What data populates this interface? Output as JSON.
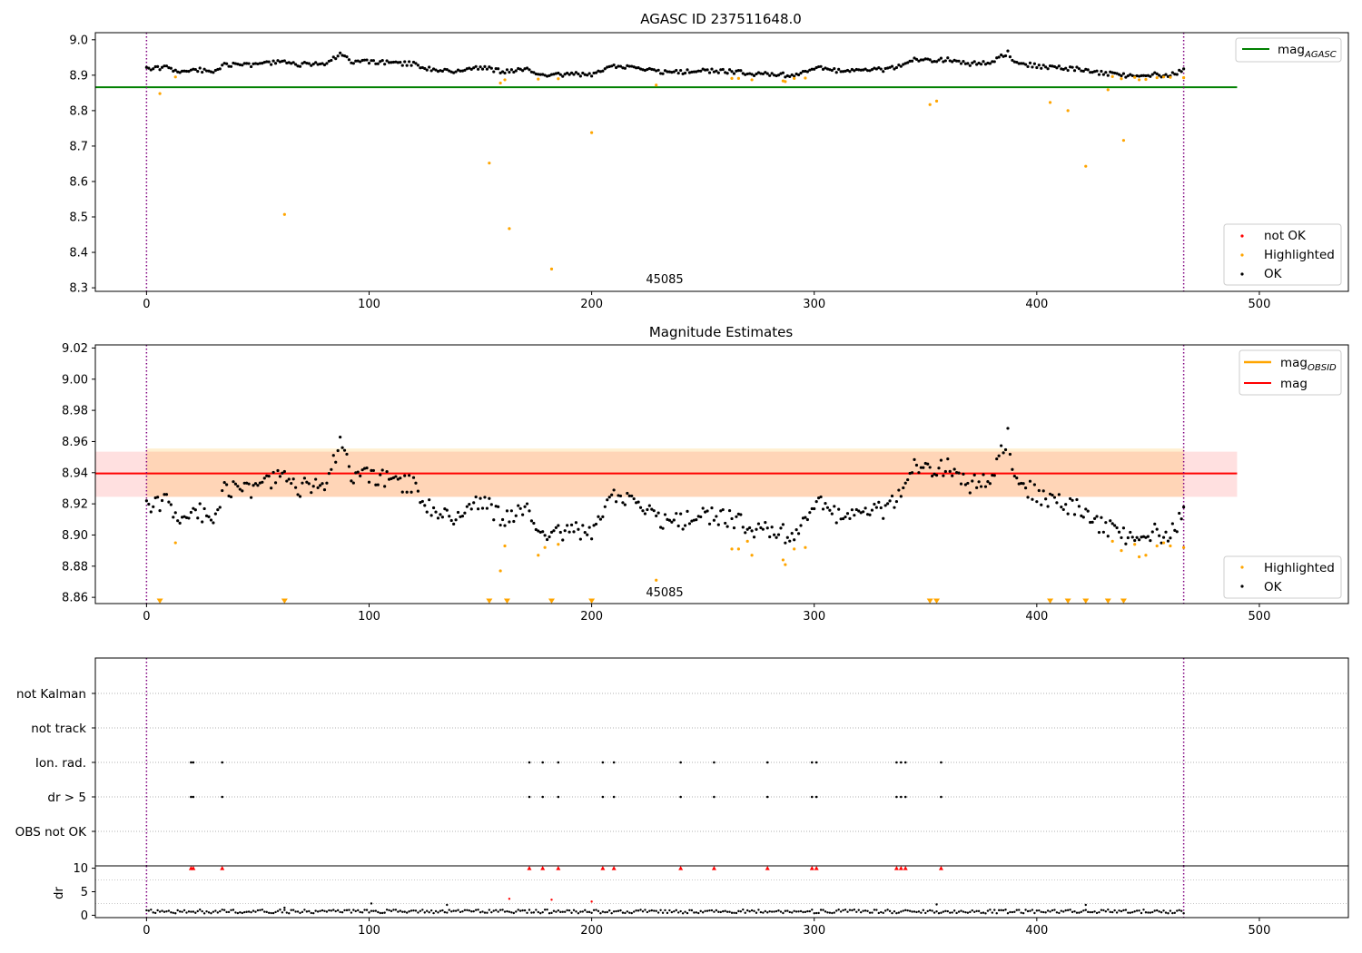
{
  "chart_data": [
    {
      "type": "scatter",
      "title": "AGASC ID 237511648.0",
      "xlim": [
        -23,
        540
      ],
      "ylim": [
        8.29,
        9.02
      ],
      "xticks": [
        0,
        100,
        200,
        300,
        400,
        500
      ],
      "yticks": [
        8.3,
        8.4,
        8.5,
        8.6,
        8.7,
        8.8,
        8.9,
        9.0
      ],
      "ytick_labels": [
        "8.3",
        "8.4",
        "8.5",
        "8.6",
        "8.7",
        "8.8",
        "8.9",
        "9.0"
      ],
      "hline": {
        "label": "mag",
        "label_sub": "AGASC",
        "value": 8.866,
        "x_range": [
          -23,
          490
        ],
        "color": "#008000"
      },
      "vlines": [
        0,
        466
      ],
      "obsid_annotation": {
        "text": "45085",
        "x": 233,
        "y": 8.3
      },
      "legend_top": [
        {
          "label": "mag",
          "sub": "AGASC",
          "kind": "line",
          "color": "#008000"
        }
      ],
      "legend_bottom": [
        {
          "label": "not OK",
          "kind": "dot",
          "color": "#ff0000"
        },
        {
          "label": "Highlighted",
          "kind": "dot",
          "color": "#ffa500"
        },
        {
          "label": "OK",
          "kind": "dot",
          "color": "#000000"
        }
      ],
      "highlighted": [
        [
          6,
          8.848
        ],
        [
          13,
          8.895
        ],
        [
          62,
          8.507
        ],
        [
          154,
          8.652
        ],
        [
          159,
          8.878
        ],
        [
          161,
          8.887
        ],
        [
          163,
          8.467
        ],
        [
          176,
          8.889
        ],
        [
          182,
          8.353
        ],
        [
          185,
          8.89
        ],
        [
          200,
          8.738
        ],
        [
          229,
          8.872
        ],
        [
          263,
          8.891
        ],
        [
          266,
          8.891
        ],
        [
          272,
          8.887
        ],
        [
          286,
          8.884
        ],
        [
          287,
          8.882
        ],
        [
          291,
          8.891
        ],
        [
          296,
          8.892
        ],
        [
          352,
          8.817
        ],
        [
          355,
          8.827
        ],
        [
          406,
          8.823
        ],
        [
          414,
          8.8
        ],
        [
          422,
          8.643
        ],
        [
          432,
          8.859
        ],
        [
          434,
          8.896
        ],
        [
          438,
          8.89
        ],
        [
          439,
          8.716
        ],
        [
          444,
          8.894
        ],
        [
          446,
          8.887
        ],
        [
          449,
          8.888
        ],
        [
          454,
          8.893
        ],
        [
          457,
          8.895
        ],
        [
          460,
          8.894
        ],
        [
          466,
          8.893
        ]
      ],
      "not_ok": [
        [
          163,
          8.93
        ],
        [
          182,
          8.93
        ],
        [
          200,
          8.93
        ]
      ],
      "ok_series": {
        "start": 0,
        "end": 466,
        "anchors": [
          [
            0,
            8.918
          ],
          [
            5,
            8.919
          ],
          [
            10,
            8.922
          ],
          [
            15,
            8.908
          ],
          [
            20,
            8.916
          ],
          [
            30,
            8.912
          ],
          [
            35,
            8.93
          ],
          [
            45,
            8.928
          ],
          [
            55,
            8.935
          ],
          [
            60,
            8.937
          ],
          [
            70,
            8.93
          ],
          [
            80,
            8.935
          ],
          [
            88,
            8.96
          ],
          [
            92,
            8.935
          ],
          [
            100,
            8.938
          ],
          [
            110,
            8.935
          ],
          [
            120,
            8.932
          ],
          [
            130,
            8.912
          ],
          [
            140,
            8.912
          ],
          [
            150,
            8.922
          ],
          [
            160,
            8.911
          ],
          [
            170,
            8.916
          ],
          [
            180,
            8.902
          ],
          [
            190,
            8.903
          ],
          [
            200,
            8.9
          ],
          [
            210,
            8.926
          ],
          [
            220,
            8.918
          ],
          [
            230,
            8.91
          ],
          [
            240,
            8.908
          ],
          [
            250,
            8.913
          ],
          [
            260,
            8.912
          ],
          [
            270,
            8.905
          ],
          [
            280,
            8.902
          ],
          [
            290,
            8.9
          ],
          [
            300,
            8.922
          ],
          [
            310,
            8.912
          ],
          [
            320,
            8.918
          ],
          [
            330,
            8.915
          ],
          [
            340,
            8.928
          ],
          [
            345,
            8.95
          ],
          [
            350,
            8.94
          ],
          [
            360,
            8.944
          ],
          [
            370,
            8.932
          ],
          [
            380,
            8.935
          ],
          [
            387,
            8.965
          ],
          [
            390,
            8.938
          ],
          [
            400,
            8.925
          ],
          [
            410,
            8.92
          ],
          [
            420,
            8.916
          ],
          [
            430,
            8.905
          ],
          [
            440,
            8.9
          ],
          [
            450,
            8.902
          ],
          [
            460,
            8.9
          ],
          [
            466,
            8.912
          ]
        ]
      }
    },
    {
      "type": "scatter",
      "title": "Magnitude Estimates",
      "xlim": [
        -23,
        540
      ],
      "ylim": [
        8.856,
        9.022
      ],
      "xticks": [
        0,
        100,
        200,
        300,
        400,
        500
      ],
      "yticks": [
        8.86,
        8.88,
        8.9,
        8.92,
        8.94,
        8.96,
        8.98,
        9.0,
        9.02
      ],
      "ytick_labels": [
        "8.86",
        "8.88",
        "8.90",
        "8.92",
        "8.94",
        "8.96",
        "8.98",
        "9.00",
        "9.02"
      ],
      "mag_line": {
        "label": "mag",
        "value": 8.9395,
        "x_range": [
          -23,
          490
        ],
        "color": "#ff0000"
      },
      "mag_band": {
        "low": 8.9245,
        "high": 8.9535,
        "x_range": [
          -23,
          490
        ]
      },
      "mag_obsid_band": {
        "low": 8.9245,
        "high": 8.9555,
        "x_range": [
          0,
          466
        ]
      },
      "vlines": [
        0,
        466
      ],
      "obsid_annotation": {
        "text": "45085",
        "x": 233,
        "y": 8.863
      },
      "legend_top": [
        {
          "label": "mag",
          "sub": "OBSID",
          "kind": "line",
          "color": "#ffa500"
        },
        {
          "label": "mag",
          "sub": "",
          "kind": "line",
          "color": "#ff0000"
        }
      ],
      "legend_bottom": [
        {
          "label": "Highlighted",
          "kind": "dot",
          "color": "#ffa500"
        },
        {
          "label": "OK",
          "kind": "dot",
          "color": "#000000"
        }
      ],
      "highlighted": [
        [
          13,
          8.895
        ],
        [
          159,
          8.877
        ],
        [
          161,
          8.893
        ],
        [
          176,
          8.887
        ],
        [
          179,
          8.892
        ],
        [
          185,
          8.894
        ],
        [
          229,
          8.871
        ],
        [
          263,
          8.891
        ],
        [
          266,
          8.891
        ],
        [
          270,
          8.896
        ],
        [
          272,
          8.887
        ],
        [
          286,
          8.884
        ],
        [
          287,
          8.881
        ],
        [
          291,
          8.891
        ],
        [
          296,
          8.892
        ],
        [
          434,
          8.896
        ],
        [
          438,
          8.89
        ],
        [
          444,
          8.894
        ],
        [
          446,
          8.886
        ],
        [
          449,
          8.887
        ],
        [
          454,
          8.893
        ],
        [
          457,
          8.895
        ],
        [
          460,
          8.893
        ],
        [
          466,
          8.892
        ]
      ],
      "clipped_markers": [
        6,
        62,
        154,
        162,
        182,
        200,
        352,
        355,
        406,
        414,
        422,
        432,
        439
      ],
      "ok_series": {
        "start": 0,
        "end": 466,
        "anchors": [
          [
            0,
            8.918
          ],
          [
            5,
            8.919
          ],
          [
            10,
            8.922
          ],
          [
            15,
            8.908
          ],
          [
            20,
            8.916
          ],
          [
            30,
            8.912
          ],
          [
            35,
            8.93
          ],
          [
            45,
            8.928
          ],
          [
            55,
            8.935
          ],
          [
            60,
            8.937
          ],
          [
            70,
            8.93
          ],
          [
            80,
            8.935
          ],
          [
            88,
            8.96
          ],
          [
            92,
            8.935
          ],
          [
            100,
            8.938
          ],
          [
            110,
            8.935
          ],
          [
            120,
            8.932
          ],
          [
            130,
            8.912
          ],
          [
            140,
            8.912
          ],
          [
            150,
            8.922
          ],
          [
            160,
            8.911
          ],
          [
            170,
            8.916
          ],
          [
            180,
            8.902
          ],
          [
            190,
            8.903
          ],
          [
            200,
            8.9
          ],
          [
            210,
            8.926
          ],
          [
            220,
            8.918
          ],
          [
            230,
            8.91
          ],
          [
            240,
            8.908
          ],
          [
            250,
            8.913
          ],
          [
            260,
            8.912
          ],
          [
            270,
            8.905
          ],
          [
            280,
            8.902
          ],
          [
            290,
            8.9
          ],
          [
            300,
            8.922
          ],
          [
            310,
            8.912
          ],
          [
            320,
            8.918
          ],
          [
            330,
            8.915
          ],
          [
            340,
            8.928
          ],
          [
            345,
            8.95
          ],
          [
            350,
            8.94
          ],
          [
            360,
            8.944
          ],
          [
            370,
            8.932
          ],
          [
            380,
            8.935
          ],
          [
            387,
            8.965
          ],
          [
            390,
            8.938
          ],
          [
            400,
            8.925
          ],
          [
            410,
            8.92
          ],
          [
            420,
            8.916
          ],
          [
            430,
            8.905
          ],
          [
            440,
            8.9
          ],
          [
            450,
            8.902
          ],
          [
            460,
            8.9
          ],
          [
            466,
            8.912
          ]
        ]
      }
    },
    {
      "type": "scatter",
      "title": "",
      "xlim": [
        -23,
        540
      ],
      "categories": [
        "not Kalman",
        "not track",
        "Ion. rad.",
        "dr > 5",
        "OBS not OK"
      ],
      "flags": {
        "Ion. rad.": [
          20,
          21,
          34,
          172,
          178,
          185,
          205,
          210,
          240,
          255,
          279,
          299,
          301,
          337,
          339,
          341,
          357
        ],
        "dr > 5": [
          20,
          21,
          34,
          172,
          178,
          185,
          205,
          210,
          240,
          255,
          279,
          299,
          301,
          337,
          339,
          341,
          357
        ]
      },
      "vlines": [
        0,
        466
      ]
    },
    {
      "type": "scatter",
      "title": "",
      "ylabel": "dr",
      "xlim": [
        -23,
        540
      ],
      "ylim": [
        -0.5,
        10.5
      ],
      "xticks": [
        0,
        100,
        200,
        300,
        400,
        500
      ],
      "yticks": [
        0,
        5,
        10
      ],
      "ytick_labels": [
        "0",
        "5",
        "10"
      ],
      "capped_markers": [
        20,
        21,
        34,
        172,
        178,
        185,
        205,
        210,
        240,
        255,
        279,
        299,
        301,
        337,
        339,
        341,
        357
      ],
      "not_ok_points": [
        [
          163,
          3.5
        ],
        [
          182,
          3.3
        ],
        [
          200,
          2.9
        ]
      ],
      "outliers": [
        [
          62,
          1.6
        ],
        [
          101,
          2.5
        ],
        [
          135,
          2.2
        ],
        [
          355,
          2.3
        ],
        [
          422,
          2.2
        ]
      ],
      "ok_series": {
        "start": 0,
        "end": 466,
        "base": 0.8,
        "amp": 0.4
      },
      "vlines": [
        0,
        466
      ]
    }
  ]
}
